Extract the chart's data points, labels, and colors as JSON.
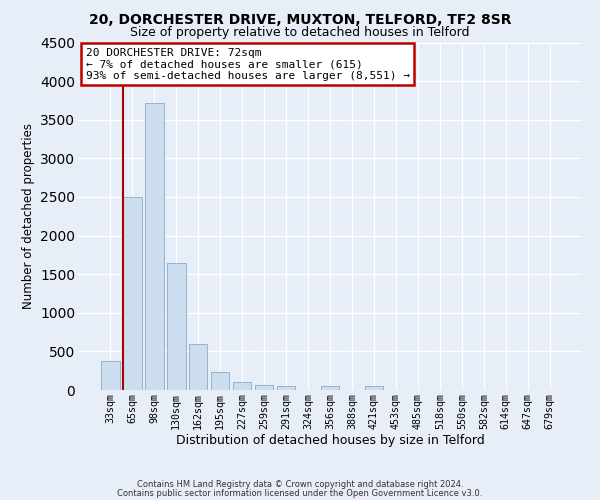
{
  "title1": "20, DORCHESTER DRIVE, MUXTON, TELFORD, TF2 8SR",
  "title2": "Size of property relative to detached houses in Telford",
  "xlabel": "Distribution of detached houses by size in Telford",
  "ylabel": "Number of detached properties",
  "bin_labels": [
    "33sqm",
    "65sqm",
    "98sqm",
    "130sqm",
    "162sqm",
    "195sqm",
    "227sqm",
    "259sqm",
    "291sqm",
    "324sqm",
    "356sqm",
    "388sqm",
    "421sqm",
    "453sqm",
    "485sqm",
    "518sqm",
    "550sqm",
    "582sqm",
    "614sqm",
    "647sqm",
    "679sqm"
  ],
  "bar_values": [
    380,
    2500,
    3720,
    1640,
    590,
    230,
    105,
    60,
    55,
    0,
    55,
    0,
    50,
    0,
    0,
    0,
    0,
    0,
    0,
    0,
    0
  ],
  "bar_color": "#ccddf0",
  "bar_edge_color": "#88aacc",
  "marker_line_color": "#aa0000",
  "ylim": [
    0,
    4500
  ],
  "yticks": [
    0,
    500,
    1000,
    1500,
    2000,
    2500,
    3000,
    3500,
    4000,
    4500
  ],
  "annotation_title": "20 DORCHESTER DRIVE: 72sqm",
  "annotation_line1": "← 7% of detached houses are smaller (615)",
  "annotation_line2": "93% of semi-detached houses are larger (8,551) →",
  "annotation_box_facecolor": "#ffffff",
  "annotation_box_edgecolor": "#bb0000",
  "footer1": "Contains HM Land Registry data © Crown copyright and database right 2024.",
  "footer2": "Contains public sector information licensed under the Open Government Licence v3.0.",
  "background_color": "#e8eef8",
  "grid_color": "#ffffff"
}
